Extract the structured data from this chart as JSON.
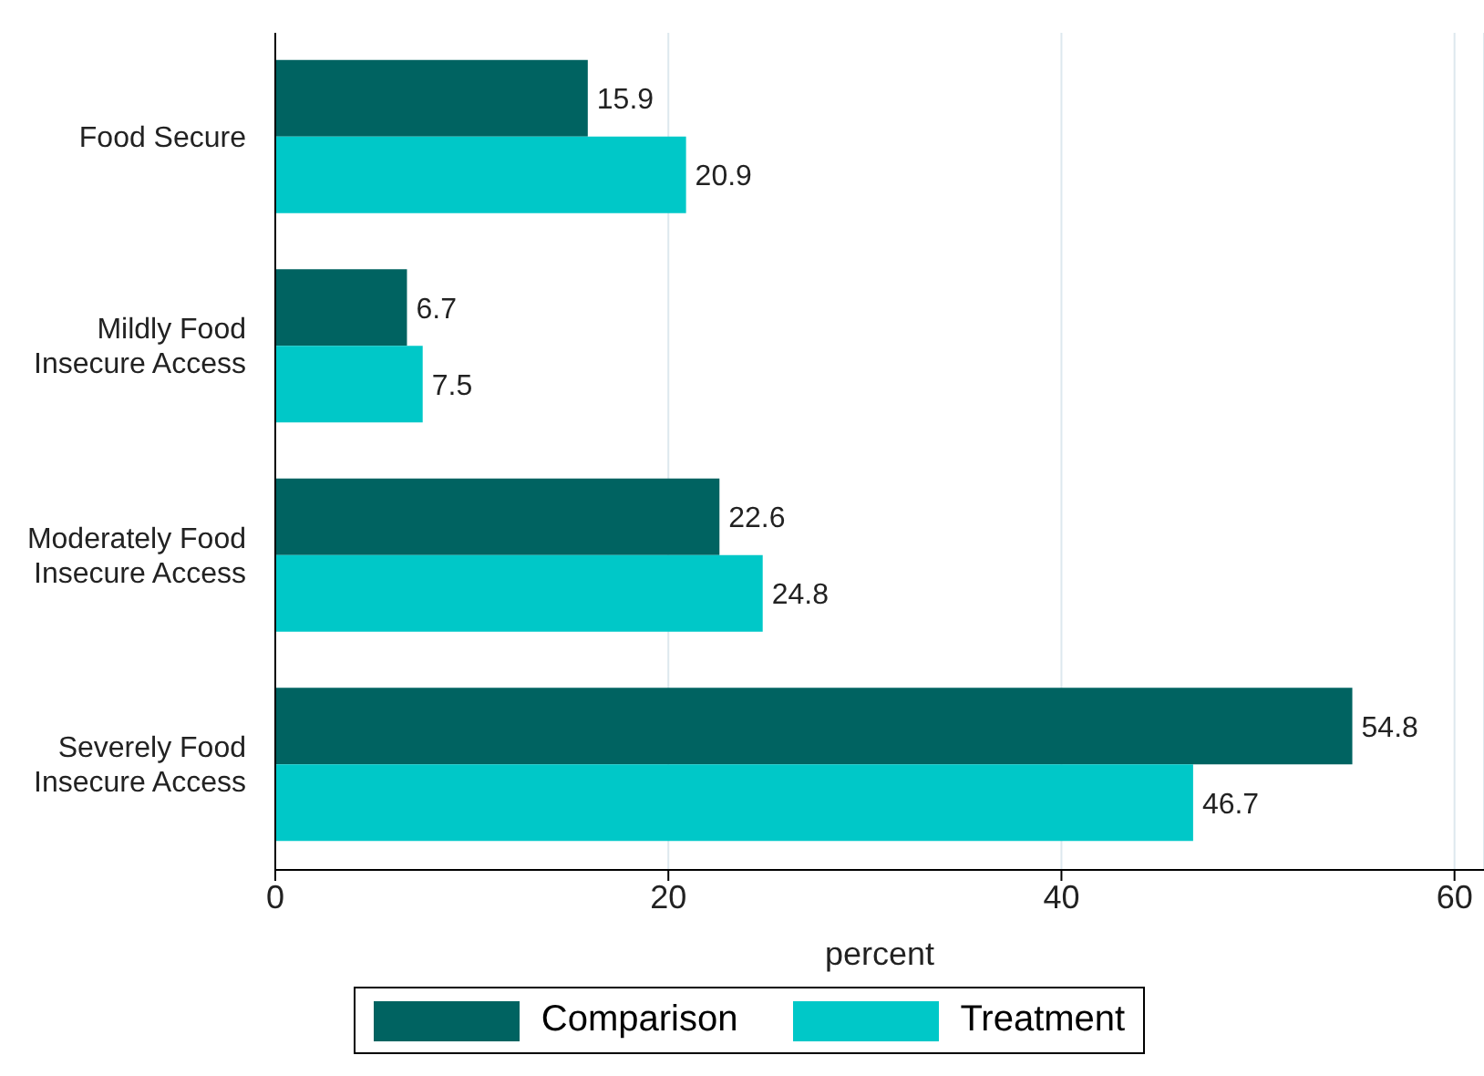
{
  "chart_data": {
    "type": "bar",
    "orientation": "horizontal",
    "xlabel": "percent",
    "categories": [
      "Food Secure",
      "Mildly Food Insecure Access",
      "Moderately Food Insecure Access",
      "Severely Food Insecure Access"
    ],
    "series": [
      {
        "name": "Comparison",
        "color": "#006361",
        "values": [
          15.9,
          6.7,
          22.6,
          54.8
        ]
      },
      {
        "name": "Treatment",
        "color": "#00c8c8",
        "values": [
          20.9,
          7.5,
          24.8,
          46.7
        ]
      }
    ],
    "xlim": [
      0,
      61.5
    ],
    "xticks": [
      0,
      20,
      40,
      60
    ],
    "grid": "x",
    "legend": "bottom",
    "data_labels": true
  }
}
